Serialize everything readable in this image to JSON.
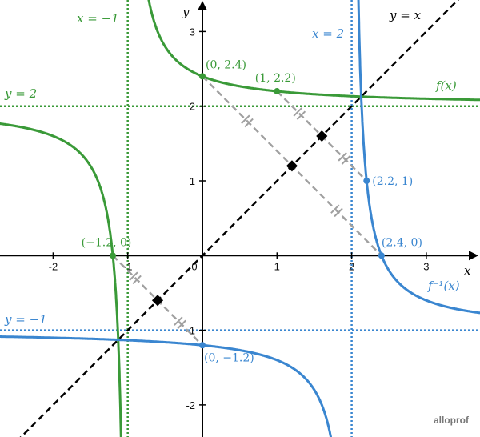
{
  "chart_data": {
    "type": "line",
    "xlabel": "x",
    "ylabel": "y",
    "xlim": [
      -2.7,
      3.7
    ],
    "ylim": [
      -2.45,
      3.4
    ],
    "x_ticks": [
      "-2",
      "-1",
      "0",
      "1",
      "2",
      "3"
    ],
    "y_ticks": [
      "-2",
      "-1",
      "1",
      "2",
      "3"
    ],
    "grid": false,
    "colors": {
      "f": "#3a9a38",
      "finv": "#3a86d0",
      "identity": "#000000",
      "segments": "#a0a0a0"
    },
    "series": [
      {
        "name": "f(x)",
        "formula": "2 + 0.4/(x+1)",
        "color": "#3a9a38"
      },
      {
        "name": "f^{-1}(x)",
        "formula": "-1 + 0.4/(x-2)",
        "color": "#3a86d0"
      },
      {
        "name": "y = x",
        "formula": "x",
        "color": "#000000"
      }
    ],
    "asymptotes": [
      {
        "label": "x = −1",
        "orientation": "vertical",
        "value": -1,
        "color": "#3a9a38"
      },
      {
        "label": "y = 2",
        "orientation": "horizontal",
        "value": 2,
        "color": "#3a9a38"
      },
      {
        "label": "x = 2",
        "orientation": "vertical",
        "value": 2,
        "color": "#3a86d0"
      },
      {
        "label": "y = −1",
        "orientation": "horizontal",
        "value": -1,
        "color": "#3a86d0"
      }
    ],
    "points": [
      {
        "label": "(0, 2.4)",
        "x": 0,
        "y": 2.4,
        "series": "f"
      },
      {
        "label": "(1, 2.2)",
        "x": 1,
        "y": 2.2,
        "series": "f"
      },
      {
        "label": "(−1.2, 0)",
        "x": -1.2,
        "y": 0,
        "series": "f"
      },
      {
        "label": "(2.2, 1)",
        "x": 2.2,
        "y": 1,
        "series": "finv"
      },
      {
        "label": "(2.4, 0)",
        "x": 2.4,
        "y": 0,
        "series": "finv"
      },
      {
        "label": "(0, −1.2)",
        "x": 0,
        "y": -1.2,
        "series": "finv"
      }
    ],
    "reflection_segments": [
      [
        [
          0,
          2.4
        ],
        [
          2.4,
          0
        ]
      ],
      [
        [
          1,
          2.2
        ],
        [
          2.2,
          1
        ]
      ],
      [
        [
          -1.2,
          0
        ],
        [
          0,
          -1.2
        ]
      ]
    ],
    "curve_labels": {
      "f": "f(x)",
      "finv": "f⁻¹(x)",
      "identity": "y = x"
    }
  },
  "logo": "alloprof"
}
